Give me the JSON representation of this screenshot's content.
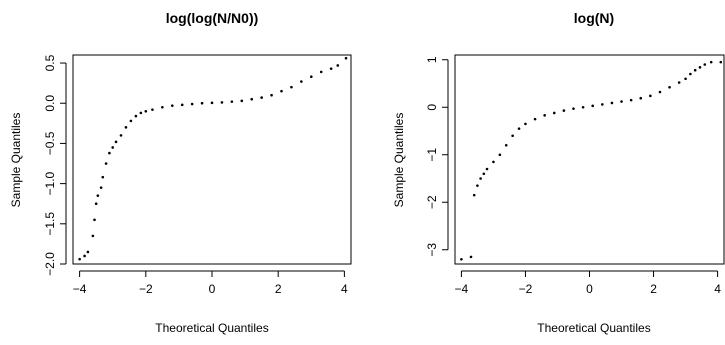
{
  "chart_data": [
    {
      "type": "scatter",
      "title": "log(log(N/N0))",
      "xlabel": "Theoretical Quantiles",
      "ylabel": "Sample Quantiles",
      "xlim": [
        -4.2,
        4.2
      ],
      "ylim": [
        -2.0,
        0.6
      ],
      "xticks": [
        -4,
        -2,
        0,
        2,
        4
      ],
      "xtick_labels": [
        "−4",
        "−2",
        "0",
        "2",
        "4"
      ],
      "yticks": [
        -2.0,
        -1.5,
        -1.0,
        -0.5,
        0.0,
        0.5
      ],
      "ytick_labels": [
        "−2.0",
        "−1.5",
        "−1.0",
        "−0.5",
        "0.0",
        "0.5"
      ],
      "grid": false,
      "series": [
        {
          "points": [
            [
              -4.0,
              -1.94
            ],
            [
              -3.85,
              -1.9
            ],
            [
              -3.75,
              -1.85
            ],
            [
              -3.6,
              -1.65
            ],
            [
              -3.55,
              -1.45
            ],
            [
              -3.5,
              -1.25
            ],
            [
              -3.45,
              -1.15
            ],
            [
              -3.35,
              -1.05
            ],
            [
              -3.3,
              -0.92
            ],
            [
              -3.2,
              -0.75
            ],
            [
              -3.1,
              -0.62
            ],
            [
              -3.0,
              -0.55
            ],
            [
              -2.9,
              -0.48
            ],
            [
              -2.75,
              -0.4
            ],
            [
              -2.6,
              -0.3
            ],
            [
              -2.45,
              -0.22
            ],
            [
              -2.3,
              -0.16
            ],
            [
              -2.15,
              -0.12
            ],
            [
              -2.0,
              -0.1
            ],
            [
              -1.8,
              -0.08
            ],
            [
              -1.5,
              -0.05
            ],
            [
              -1.2,
              -0.03
            ],
            [
              -0.9,
              -0.02
            ],
            [
              -0.6,
              -0.01
            ],
            [
              -0.3,
              0.0
            ],
            [
              0.0,
              0.005
            ],
            [
              0.3,
              0.01
            ],
            [
              0.6,
              0.02
            ],
            [
              0.9,
              0.03
            ],
            [
              1.2,
              0.05
            ],
            [
              1.5,
              0.07
            ],
            [
              1.8,
              0.1
            ],
            [
              2.1,
              0.15
            ],
            [
              2.4,
              0.2
            ],
            [
              2.7,
              0.27
            ],
            [
              3.0,
              0.33
            ],
            [
              3.3,
              0.39
            ],
            [
              3.6,
              0.43
            ],
            [
              3.8,
              0.47
            ],
            [
              4.05,
              0.56
            ]
          ]
        }
      ]
    },
    {
      "type": "scatter",
      "title": "log(N)",
      "xlabel": "Theoretical Quantiles",
      "ylabel": "Sample Quantiles",
      "xlim": [
        -4.2,
        4.2
      ],
      "ylim": [
        -3.3,
        1.1
      ],
      "xticks": [
        -4,
        -2,
        0,
        2,
        4
      ],
      "xtick_labels": [
        "−4",
        "−2",
        "0",
        "2",
        "4"
      ],
      "yticks": [
        -3,
        -2,
        -1,
        0,
        1
      ],
      "ytick_labels": [
        "−3",
        "−2",
        "−1",
        "0",
        "1"
      ],
      "grid": false,
      "series": [
        {
          "points": [
            [
              -4.0,
              -3.2
            ],
            [
              -3.7,
              -3.15
            ],
            [
              -3.6,
              -1.85
            ],
            [
              -3.5,
              -1.65
            ],
            [
              -3.4,
              -1.5
            ],
            [
              -3.3,
              -1.4
            ],
            [
              -3.2,
              -1.3
            ],
            [
              -3.0,
              -1.15
            ],
            [
              -2.8,
              -1.0
            ],
            [
              -2.6,
              -0.8
            ],
            [
              -2.4,
              -0.6
            ],
            [
              -2.2,
              -0.45
            ],
            [
              -2.0,
              -0.35
            ],
            [
              -1.7,
              -0.25
            ],
            [
              -1.4,
              -0.17
            ],
            [
              -1.1,
              -0.12
            ],
            [
              -0.8,
              -0.07
            ],
            [
              -0.5,
              -0.03
            ],
            [
              -0.2,
              0.0
            ],
            [
              0.1,
              0.03
            ],
            [
              0.4,
              0.06
            ],
            [
              0.7,
              0.09
            ],
            [
              1.0,
              0.12
            ],
            [
              1.3,
              0.15
            ],
            [
              1.6,
              0.19
            ],
            [
              1.9,
              0.24
            ],
            [
              2.2,
              0.32
            ],
            [
              2.5,
              0.42
            ],
            [
              2.8,
              0.52
            ],
            [
              3.0,
              0.6
            ],
            [
              3.15,
              0.7
            ],
            [
              3.3,
              0.78
            ],
            [
              3.45,
              0.84
            ],
            [
              3.6,
              0.9
            ],
            [
              3.8,
              0.95
            ],
            [
              4.1,
              0.95
            ]
          ]
        }
      ]
    }
  ]
}
